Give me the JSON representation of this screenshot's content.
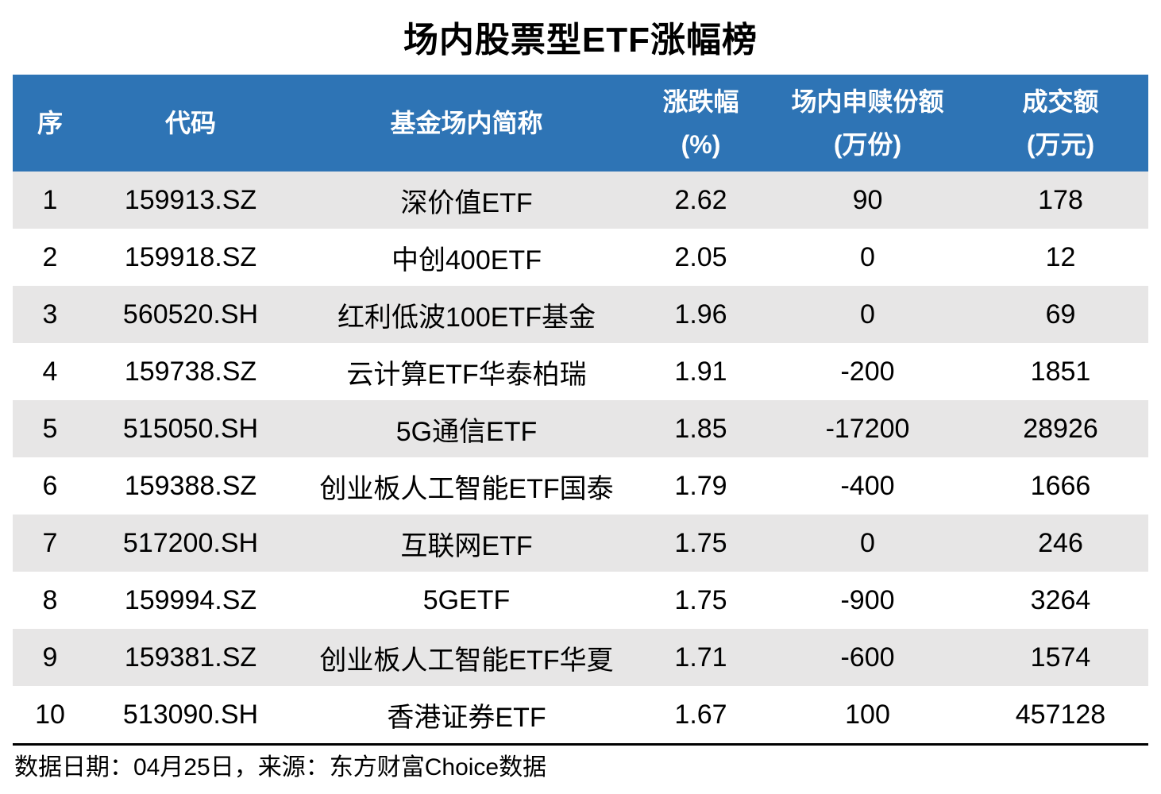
{
  "title": "场内股票型ETF涨幅榜",
  "colors": {
    "header_bg": "#2e74b5",
    "header_text": "#ffffff",
    "row_alt_bg": "#e7e6e6",
    "row_bg": "#ffffff",
    "text_color": "#000000",
    "divider_color": "#000000"
  },
  "table": {
    "headers": [
      {
        "line1": "序",
        "line2": ""
      },
      {
        "line1": "代码",
        "line2": ""
      },
      {
        "line1": "基金场内简称",
        "line2": ""
      },
      {
        "line1": "涨跌幅",
        "line2": "(%)"
      },
      {
        "line1": "场内申赎份额",
        "line2": "(万份)"
      },
      {
        "line1": "成交额",
        "line2": "(万元)"
      }
    ],
    "rows": [
      [
        "1",
        "159913.SZ",
        "深价值ETF",
        "2.62",
        "90",
        "178"
      ],
      [
        "2",
        "159918.SZ",
        "中创400ETF",
        "2.05",
        "0",
        "12"
      ],
      [
        "3",
        "560520.SH",
        "红利低波100ETF基金",
        "1.96",
        "0",
        "69"
      ],
      [
        "4",
        "159738.SZ",
        "云计算ETF华泰柏瑞",
        "1.91",
        "-200",
        "1851"
      ],
      [
        "5",
        "515050.SH",
        "5G通信ETF",
        "1.85",
        "-17200",
        "28926"
      ],
      [
        "6",
        "159388.SZ",
        "创业板人工智能ETF国泰",
        "1.79",
        "-400",
        "1666"
      ],
      [
        "7",
        "517200.SH",
        "互联网ETF",
        "1.75",
        "0",
        "246"
      ],
      [
        "8",
        "159994.SZ",
        "5GETF",
        "1.75",
        "-900",
        "3264"
      ],
      [
        "9",
        "159381.SZ",
        "创业板人工智能ETF华夏",
        "1.71",
        "-600",
        "1574"
      ],
      [
        "10",
        "513090.SH",
        "香港证券ETF",
        "1.67",
        "100",
        "457128"
      ]
    ]
  },
  "footer": {
    "text": "数据日期：04月25日，来源：东方财富Choice数据"
  },
  "chart_data": {
    "type": "table",
    "title": "场内股票型ETF涨幅榜",
    "columns": [
      "序",
      "代码",
      "基金场内简称",
      "涨跌幅(%)",
      "场内申赎份额(万份)",
      "成交额(万元)"
    ],
    "rows": [
      [
        1,
        "159913.SZ",
        "深价值ETF",
        2.62,
        90,
        178
      ],
      [
        2,
        "159918.SZ",
        "中创400ETF",
        2.05,
        0,
        12
      ],
      [
        3,
        "560520.SH",
        "红利低波100ETF基金",
        1.96,
        0,
        69
      ],
      [
        4,
        "159738.SZ",
        "云计算ETF华泰柏瑞",
        1.91,
        -200,
        1851
      ],
      [
        5,
        "515050.SH",
        "5G通信ETF",
        1.85,
        -17200,
        28926
      ],
      [
        6,
        "159388.SZ",
        "创业板人工智能ETF国泰",
        1.79,
        -400,
        1666
      ],
      [
        7,
        "517200.SH",
        "互联网ETF",
        1.75,
        0,
        246
      ],
      [
        8,
        "159994.SZ",
        "5GETF",
        1.75,
        -900,
        3264
      ],
      [
        9,
        "159381.SZ",
        "创业板人工智能ETF华夏",
        1.71,
        -600,
        1574
      ],
      [
        10,
        "513090.SH",
        "香港证券ETF",
        1.67,
        100,
        457128
      ]
    ],
    "source_note": "数据日期：04月25日，来源：东方财富Choice数据",
    "layout": {
      "header_bg": "#2e74b5",
      "striped": true,
      "stripe_color": "#e7e6e6"
    }
  }
}
